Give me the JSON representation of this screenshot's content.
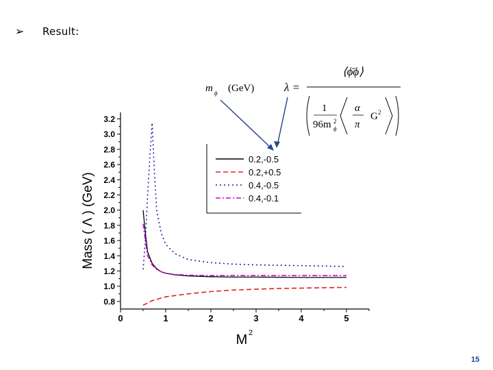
{
  "slide": {
    "bullet_icon": "arrowhead-bullet-icon",
    "heading": "Result:",
    "page_number": "15"
  },
  "annotations": {
    "mass_label": "m",
    "mass_subscript": "ϕ",
    "mass_unit": "(GeV)",
    "lambda_symbol": "λ =",
    "numerator": "⟨ϕ̄ϕ⟩",
    "denominator_one": "1",
    "denominator_coeff": "96m",
    "denominator_sub": "ϕ",
    "denominator_sup": "2",
    "alpha": "α",
    "pi": "π",
    "gluon_term": "G",
    "gluon_sup": "2"
  },
  "chart_data": {
    "type": "line",
    "xlabel": "M",
    "xlabel_sup": "2",
    "ylabel": "Mass ( Λ ) (GeV)",
    "xlim": [
      0,
      5.5
    ],
    "ylim": [
      0.7,
      3.25
    ],
    "xticks": [
      "0",
      "1",
      "2",
      "3",
      "4",
      "5"
    ],
    "yticks": [
      "0.8",
      "1.0",
      "1.2",
      "1.4",
      "1.6",
      "1.8",
      "2.0",
      "2.2",
      "2.4",
      "2.6",
      "2.8",
      "3.0",
      "3.2"
    ],
    "grid": false,
    "legend_position": "top-right",
    "series": [
      {
        "name": "0.2,-0.5",
        "color": "#000000",
        "dash": "solid",
        "x": [
          0.5,
          0.55,
          0.6,
          0.7,
          0.8,
          0.9,
          1.0,
          1.2,
          1.5,
          2.0,
          2.5,
          3.0,
          4.0,
          5.0
        ],
        "y": [
          2.0,
          1.7,
          1.45,
          1.3,
          1.23,
          1.19,
          1.17,
          1.15,
          1.135,
          1.125,
          1.12,
          1.12,
          1.115,
          1.115
        ]
      },
      {
        "name": "0.2,+0.5",
        "color": "#e0201a",
        "dash": "dashed",
        "x": [
          0.5,
          0.7,
          1.0,
          1.5,
          2.0,
          2.5,
          3.0,
          3.5,
          4.0,
          4.5,
          5.0
        ],
        "y": [
          0.75,
          0.81,
          0.86,
          0.9,
          0.93,
          0.95,
          0.96,
          0.97,
          0.975,
          0.98,
          0.985
        ]
      },
      {
        "name": "0.4,-0.5",
        "color": "#1a1aa8",
        "dash": "dotted",
        "x": [
          0.5,
          0.55,
          0.6,
          0.65,
          0.7,
          0.75,
          0.8,
          0.9,
          1.0,
          1.2,
          1.5,
          2.0,
          2.5,
          3.0,
          4.0,
          5.0
        ],
        "y": [
          1.22,
          1.6,
          2.2,
          2.7,
          3.15,
          2.5,
          2.0,
          1.7,
          1.55,
          1.43,
          1.35,
          1.31,
          1.29,
          1.28,
          1.27,
          1.26
        ]
      },
      {
        "name": "0.4,-0.1",
        "color": "#cc00cc",
        "dash": "dashdot",
        "x": [
          0.5,
          0.55,
          0.6,
          0.7,
          0.8,
          0.9,
          1.0,
          1.2,
          1.5,
          2.0,
          2.5,
          3.0,
          4.0,
          5.0
        ],
        "y": [
          1.82,
          1.6,
          1.4,
          1.28,
          1.22,
          1.19,
          1.17,
          1.155,
          1.145,
          1.14,
          1.14,
          1.14,
          1.14,
          1.14
        ]
      }
    ]
  }
}
